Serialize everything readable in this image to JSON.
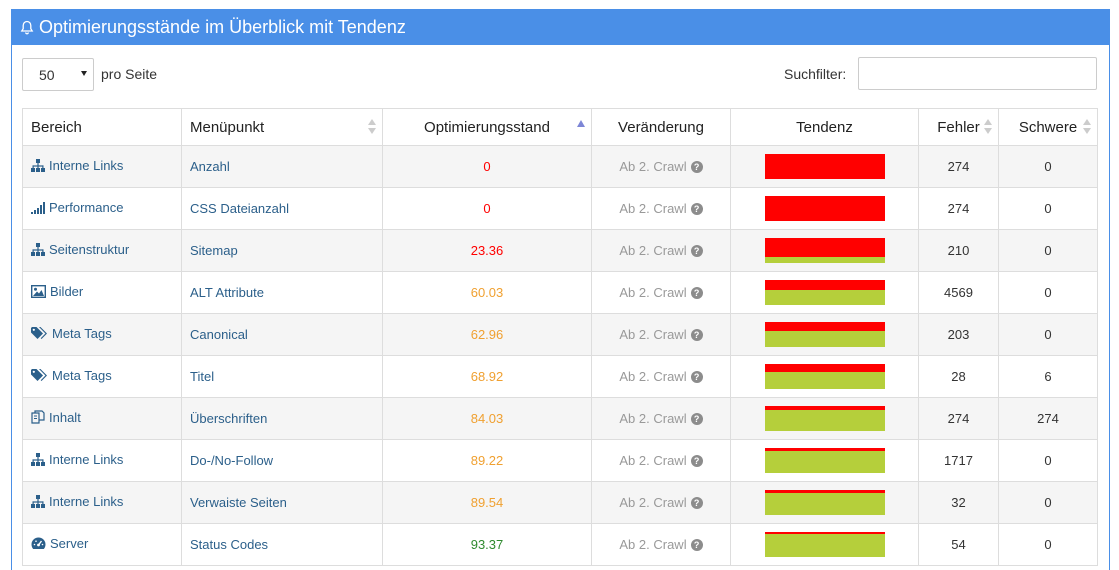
{
  "panel": {
    "title": "Optimierungsstände im Überblick mit Tendenz",
    "accent": "#4a8fe7"
  },
  "controls": {
    "page_length": "50",
    "page_length_suffix": "pro Seite",
    "filter_label": "Suchfilter:",
    "filter_value": ""
  },
  "table": {
    "headers": [
      "Bereich",
      "Menüpunkt",
      "Optimierungsstand",
      "Veränderung",
      "Tendenz",
      "Fehler",
      "Schwere"
    ],
    "sorted_column": "Optimierungsstand",
    "sort_direction": "ascending",
    "rows": [
      {
        "icon": "sitemap-icon",
        "area": "Interne Links",
        "menu": "Anzahl",
        "score": "0",
        "score_color": "red",
        "change": "Ab 2. Crawl",
        "trend_value": 0,
        "errors": "274",
        "severity": "0"
      },
      {
        "icon": "signal-icon",
        "area": "Performance",
        "menu": "CSS Dateianzahl",
        "score": "0",
        "score_color": "red",
        "change": "Ab 2. Crawl",
        "trend_value": 0,
        "errors": "274",
        "severity": "0"
      },
      {
        "icon": "sitemap-icon",
        "area": "Seitenstruktur",
        "menu": "Sitemap",
        "score": "23.36",
        "score_color": "red",
        "change": "Ab 2. Crawl",
        "trend_value": 23.36,
        "errors": "210",
        "severity": "0"
      },
      {
        "icon": "image-icon",
        "area": "Bilder",
        "menu": "ALT Attribute",
        "score": "60.03",
        "score_color": "orange",
        "change": "Ab 2. Crawl",
        "trend_value": 60.03,
        "errors": "4569",
        "severity": "0"
      },
      {
        "icon": "tags-icon",
        "area": "Meta Tags",
        "menu": "Canonical",
        "score": "62.96",
        "score_color": "orange",
        "change": "Ab 2. Crawl",
        "trend_value": 62.96,
        "errors": "203",
        "severity": "0"
      },
      {
        "icon": "tags-icon",
        "area": "Meta Tags",
        "menu": "Titel",
        "score": "68.92",
        "score_color": "orange",
        "change": "Ab 2. Crawl",
        "trend_value": 68.92,
        "errors": "28",
        "severity": "6"
      },
      {
        "icon": "files-icon",
        "area": "Inhalt",
        "menu": "Überschriften",
        "score": "84.03",
        "score_color": "orange",
        "change": "Ab 2. Crawl",
        "trend_value": 84.03,
        "errors": "274",
        "severity": "274"
      },
      {
        "icon": "sitemap-icon",
        "area": "Interne Links",
        "menu": "Do-/No-Follow",
        "score": "89.22",
        "score_color": "orange",
        "change": "Ab 2. Crawl",
        "trend_value": 89.22,
        "errors": "1717",
        "severity": "0"
      },
      {
        "icon": "sitemap-icon",
        "area": "Interne Links",
        "menu": "Verwaiste Seiten",
        "score": "89.54",
        "score_color": "orange",
        "change": "Ab 2. Crawl",
        "trend_value": 89.54,
        "errors": "32",
        "severity": "0"
      },
      {
        "icon": "dashboard-icon",
        "area": "Server",
        "menu": "Status Codes",
        "score": "93.37",
        "score_color": "green",
        "change": "Ab 2. Crawl",
        "trend_value": 93.37,
        "errors": "54",
        "severity": "0"
      }
    ]
  }
}
